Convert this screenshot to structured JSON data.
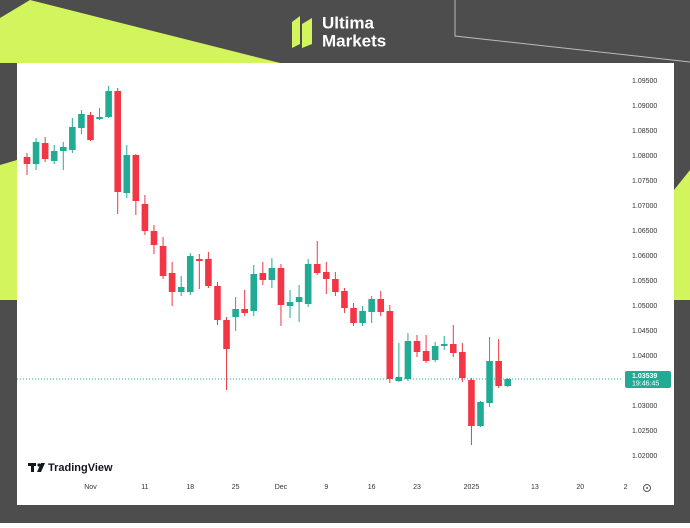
{
  "logo": {
    "line1": "Ultima",
    "line2": "Markets"
  },
  "chart_data": {
    "type": "candlestick",
    "watermark": "TradingView",
    "up_color": "#22ab94",
    "down_color": "#f23645",
    "categories": [
      null,
      null,
      null,
      null,
      null,
      null,
      null,
      "Nov",
      null,
      null,
      null,
      null,
      null,
      "11",
      null,
      null,
      null,
      null,
      "18",
      null,
      null,
      null,
      null,
      "25",
      null,
      null,
      null,
      null,
      "Dec",
      null,
      null,
      null,
      null,
      "9",
      null,
      null,
      null,
      null,
      "16",
      null,
      null,
      null,
      null,
      "23",
      null,
      null,
      null,
      null,
      null,
      "2025",
      null,
      null,
      null,
      null,
      null,
      null,
      "13",
      null,
      null,
      null,
      null,
      "20",
      null,
      null,
      null,
      null,
      "2"
    ],
    "open": [
      1.0798,
      1.0784,
      1.0826,
      1.079,
      1.081,
      1.0812,
      1.0856,
      1.0882,
      1.0874,
      1.0878,
      1.093,
      1.0726,
      1.0802,
      1.0704,
      1.065,
      1.062,
      1.0566,
      1.0528,
      1.0528,
      1.0594,
      1.0594,
      1.054,
      1.0472,
      1.0478,
      1.0494,
      1.049,
      1.0566,
      1.0552,
      1.0576,
      1.05,
      1.0508,
      1.0504,
      1.0584,
      1.0568,
      1.0554,
      1.053,
      1.0496,
      1.0466,
      1.0488,
      1.0514,
      1.049,
      1.035,
      1.0354,
      1.043,
      1.041,
      1.0392,
      1.042,
      1.0424,
      1.0408,
      1.0352,
      1.026,
      1.0306,
      1.039,
      1.034,
      null,
      null,
      null,
      null,
      null,
      null,
      null,
      null,
      null,
      null,
      null,
      null,
      null
    ],
    "high": [
      1.0806,
      1.0836,
      1.0838,
      1.0822,
      1.0828,
      1.0876,
      1.0892,
      1.0888,
      1.0896,
      1.094,
      1.0936,
      1.0822,
      1.0804,
      1.0722,
      1.0662,
      1.0638,
      1.0588,
      1.056,
      1.0606,
      1.0604,
      1.0608,
      1.0548,
      1.0478,
      1.0518,
      1.0532,
      1.0582,
      1.0588,
      1.0596,
      1.0584,
      1.0532,
      1.0542,
      1.0594,
      1.063,
      1.0588,
      1.0568,
      1.0536,
      1.0506,
      1.05,
      1.052,
      1.053,
      1.0502,
      1.0426,
      1.0446,
      1.0442,
      1.0442,
      1.0428,
      1.044,
      1.0462,
      1.0426,
      1.0356,
      1.031,
      1.0438,
      1.0434,
      1.0356,
      null,
      null,
      null,
      null,
      null,
      null,
      null,
      null,
      null,
      null,
      null,
      null,
      null
    ],
    "low": [
      1.0762,
      1.0772,
      1.0788,
      1.0784,
      1.0772,
      1.0806,
      1.0844,
      1.083,
      1.0872,
      1.0876,
      1.0684,
      1.0716,
      1.0682,
      1.0642,
      1.0604,
      1.0554,
      1.05,
      1.052,
      1.0522,
      1.0534,
      1.0536,
      1.0462,
      1.0332,
      1.045,
      1.048,
      1.048,
      1.0542,
      1.0536,
      1.046,
      1.0476,
      1.0468,
      1.0498,
      1.0562,
      1.0524,
      1.052,
      1.0486,
      1.046,
      1.046,
      1.0466,
      1.048,
      1.0346,
      1.0348,
      1.035,
      1.0398,
      1.0386,
      1.0388,
      1.0412,
      1.0398,
      1.0348,
      1.0222,
      1.0258,
      1.0298,
      1.0336,
      1.0338,
      null,
      null,
      null,
      null,
      null,
      null,
      null,
      null,
      null,
      null,
      null,
      null,
      null
    ],
    "close": [
      1.0784,
      1.0828,
      1.0794,
      1.081,
      1.0818,
      1.0858,
      1.0884,
      1.0832,
      1.0878,
      1.093,
      1.0728,
      1.0802,
      1.071,
      1.065,
      1.0622,
      1.056,
      1.0528,
      1.0538,
      1.06,
      1.059,
      1.054,
      1.0472,
      1.0414,
      1.0494,
      1.0486,
      1.0564,
      1.0552,
      1.0576,
      1.0502,
      1.0508,
      1.0518,
      1.0584,
      1.0566,
      1.0554,
      1.0528,
      1.0496,
      1.0466,
      1.049,
      1.0514,
      1.0488,
      1.0354,
      1.0358,
      1.043,
      1.0408,
      1.039,
      1.042,
      1.0424,
      1.0406,
      1.0356,
      1.026,
      1.0308,
      1.039,
      1.034,
      1.0354,
      null,
      null,
      null,
      null,
      null,
      null,
      null,
      null,
      null,
      null,
      null,
      null,
      null
    ],
    "last_price": {
      "value": 1.03539,
      "label": "1.03539"
    },
    "countdown": "19:46:45",
    "ylim": [
      1.0172,
      1.0986
    ],
    "yticks": [
      {
        "value": 1.02,
        "label": "1.02000"
      },
      {
        "value": 1.025,
        "label": "1.02500"
      },
      {
        "value": 1.03,
        "label": "1.03000"
      },
      {
        "value": 1.035,
        "label": "1.03500"
      },
      {
        "value": 1.04,
        "label": "1.04000"
      },
      {
        "value": 1.045,
        "label": "1.04500"
      },
      {
        "value": 1.05,
        "label": "1.05000"
      },
      {
        "value": 1.055,
        "label": "1.05500"
      },
      {
        "value": 1.06,
        "label": "1.06000"
      },
      {
        "value": 1.065,
        "label": "1.06500"
      },
      {
        "value": 1.07,
        "label": "1.07000"
      },
      {
        "value": 1.075,
        "label": "1.07500"
      },
      {
        "value": 1.08,
        "label": "1.08000"
      },
      {
        "value": 1.085,
        "label": "1.08500"
      },
      {
        "value": 1.09,
        "label": "1.09000"
      },
      {
        "value": 1.095,
        "label": "1.09500"
      }
    ],
    "grid": false
  }
}
